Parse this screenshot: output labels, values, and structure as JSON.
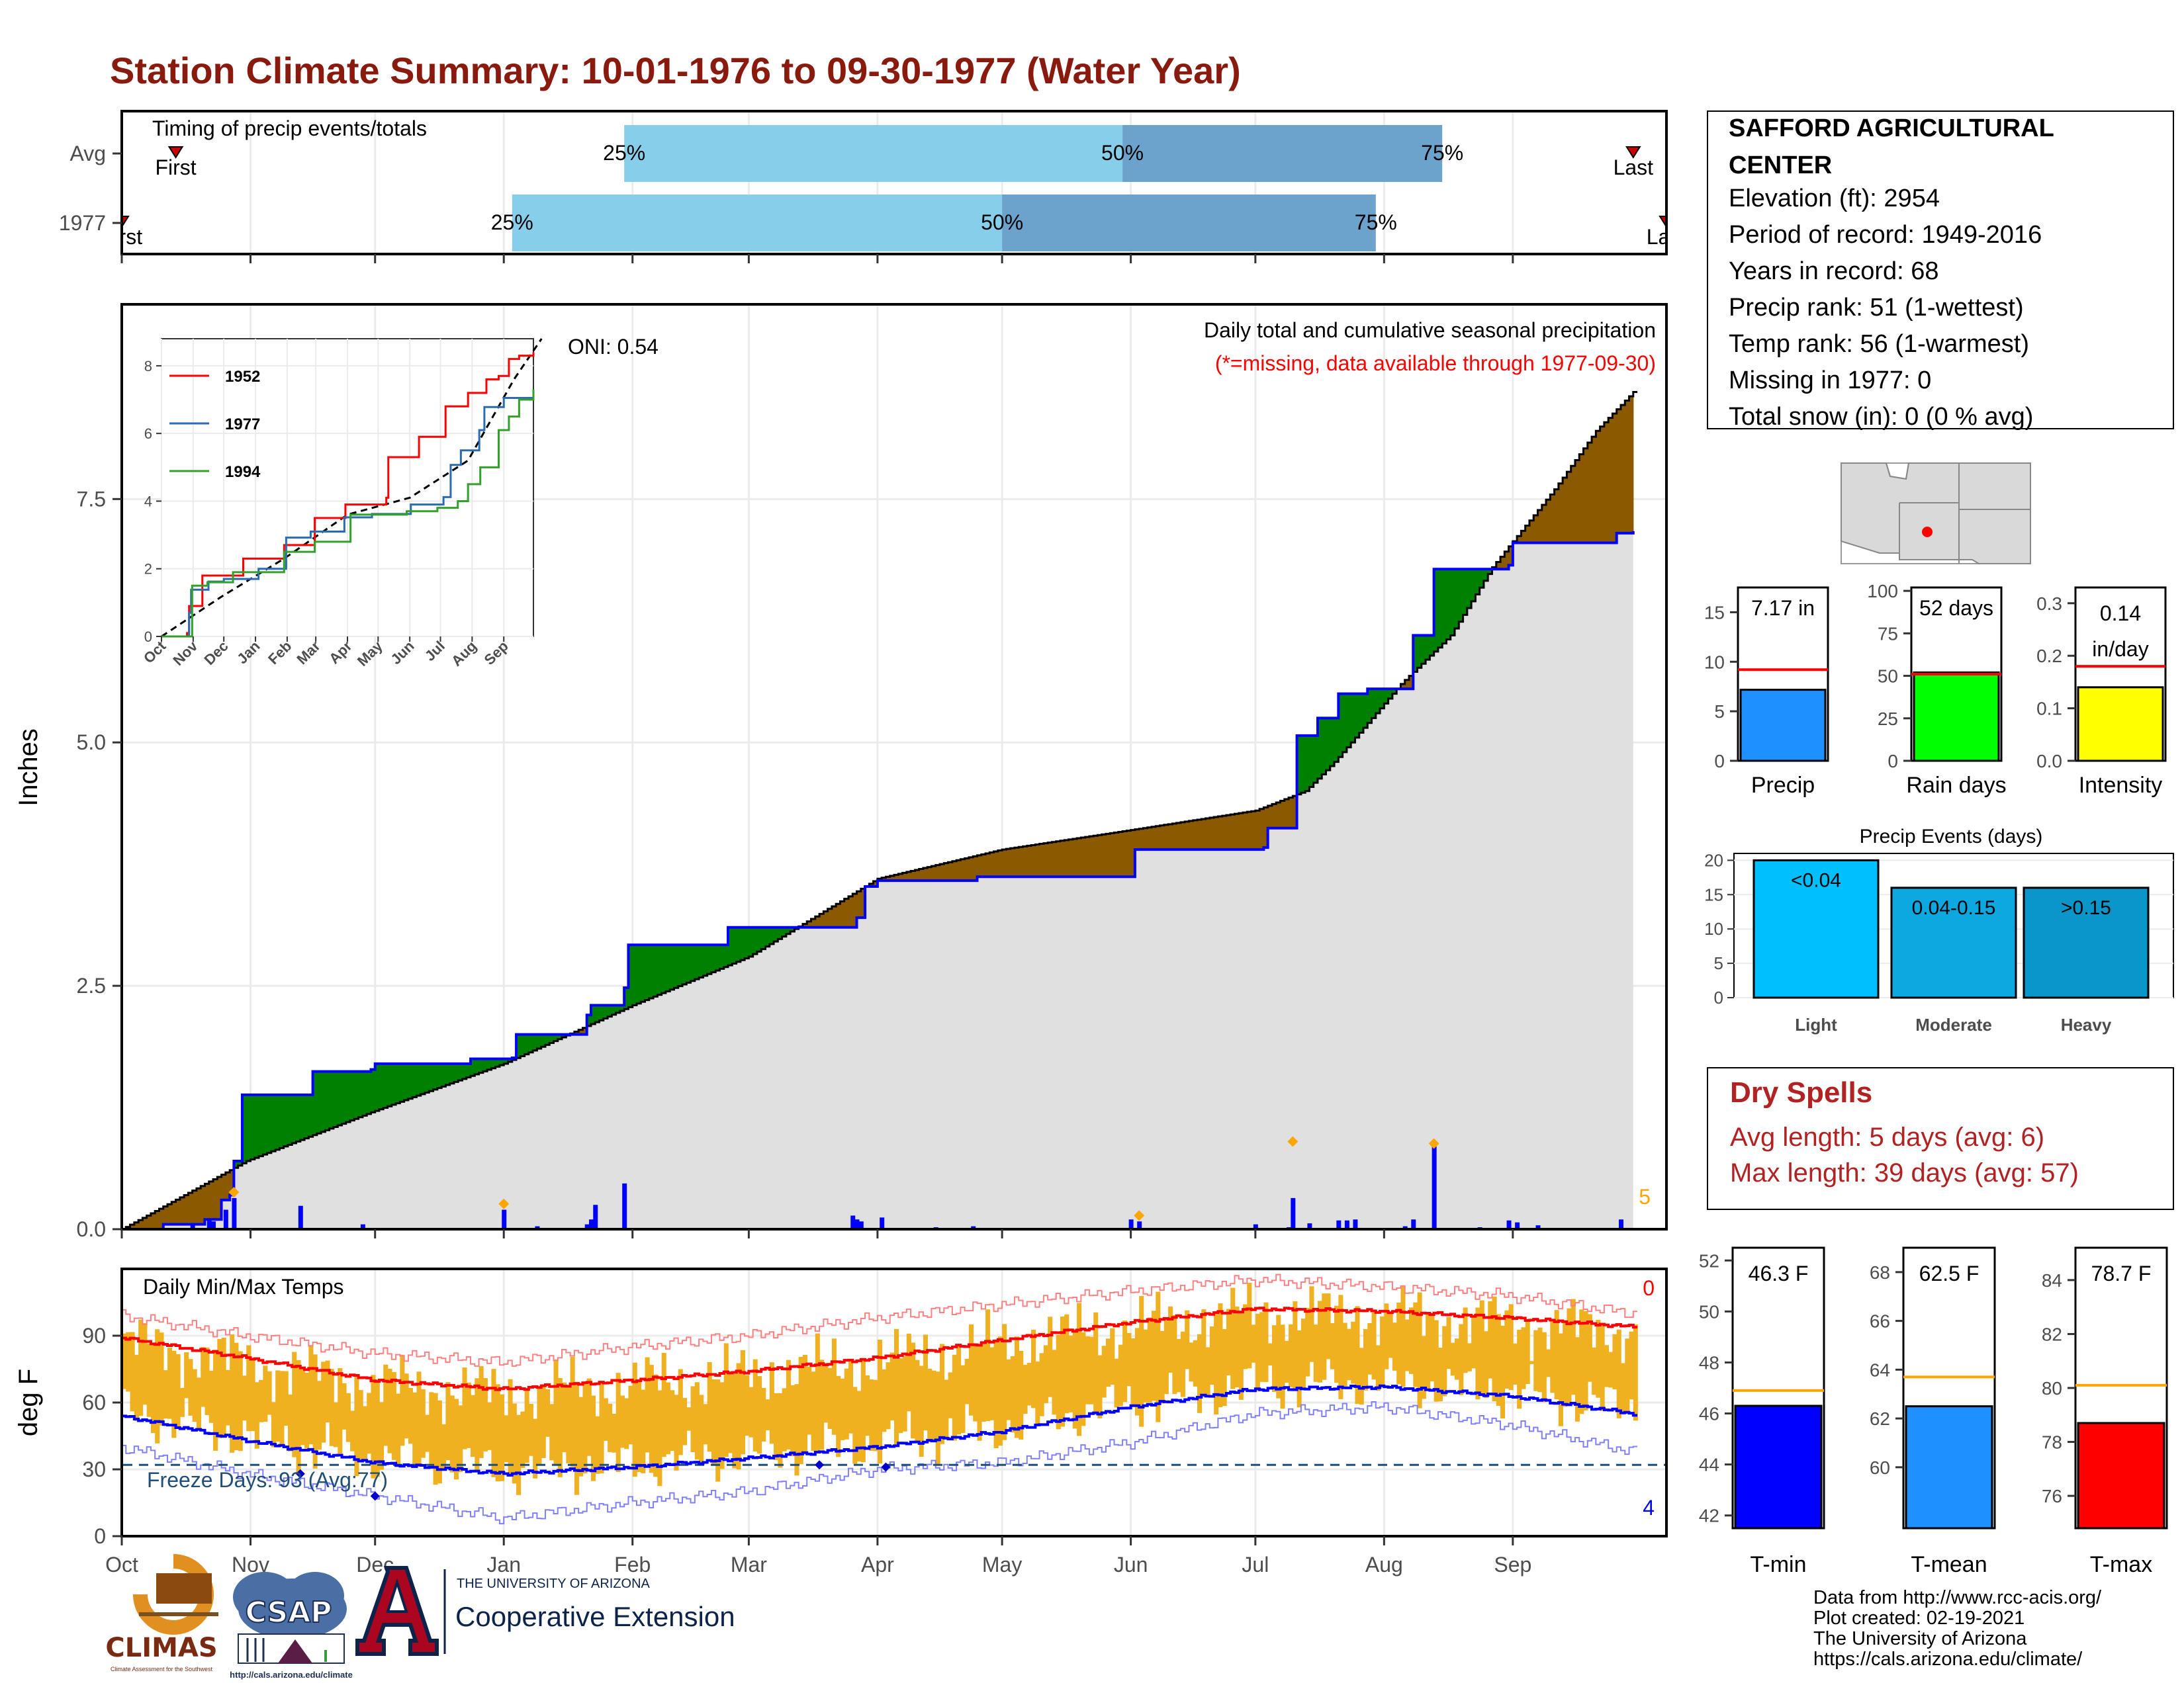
{
  "title": "Station Climate Summary: 10-01-1976 to 09-30-1977 (Water Year)",
  "colors": {
    "title": "#8B1A0E",
    "light_blue": "#87CEEB",
    "mid_blue": "#6BA3CC",
    "brown": "#8B5A00",
    "green": "#008000",
    "gray": "#E0E0E0",
    "blue": "#0000FF",
    "red": "#FF0000",
    "orange": "#FFA500",
    "temp_bar": "#EFB120",
    "dry_red": "#B22222"
  },
  "timing": {
    "label": "Timing of precip events/totals",
    "rows": [
      {
        "name": "Avg",
        "first_day": 13,
        "q25": 121,
        "q50": 241,
        "q75": 318,
        "last_day": 364,
        "first_label": "First",
        "last_label": "Last"
      },
      {
        "name": "1977",
        "first_day": 0,
        "q25": 94,
        "q50": 212,
        "q75": 302,
        "last_day": 372,
        "first_label": "First",
        "last_label": "Last"
      }
    ],
    "pct_labels": [
      "25%",
      "50%",
      "75%"
    ]
  },
  "main": {
    "ylabel": "Inches",
    "yticks": [
      "0.0",
      "2.5",
      "5.0",
      "7.5"
    ],
    "oni": "ONI: 0.54",
    "note1": "Daily total and cumulative seasonal precipitation",
    "note2": "(*=missing, data available through 1977-09-30)",
    "count_label": "5",
    "chart_data": {
      "type": "area",
      "x_unit": "day of water year (Oct 1 = 0)",
      "ylim": [
        0,
        9.5
      ],
      "avg_cumulative": [
        [
          0,
          0
        ],
        [
          30,
          0.7
        ],
        [
          60,
          1.2
        ],
        [
          92,
          1.7
        ],
        [
          123,
          2.3
        ],
        [
          151,
          2.8
        ],
        [
          182,
          3.6
        ],
        [
          212,
          3.9
        ],
        [
          243,
          4.1
        ],
        [
          273,
          4.3
        ],
        [
          285,
          4.5
        ],
        [
          292,
          4.8
        ],
        [
          300,
          5.2
        ],
        [
          308,
          5.6
        ],
        [
          320,
          6.1
        ],
        [
          330,
          6.8
        ],
        [
          345,
          7.6
        ],
        [
          355,
          8.2
        ],
        [
          364,
          8.6
        ]
      ],
      "year_cumulative": [
        [
          0,
          0
        ],
        [
          10,
          0.05
        ],
        [
          20,
          0.1
        ],
        [
          24,
          0.3
        ],
        [
          26,
          0.35
        ],
        [
          27,
          0.7
        ],
        [
          29,
          1.38
        ],
        [
          45,
          1.38
        ],
        [
          46,
          1.62
        ],
        [
          60,
          1.64
        ],
        [
          61,
          1.7
        ],
        [
          83,
          1.7
        ],
        [
          84,
          1.75
        ],
        [
          94,
          1.76
        ],
        [
          95,
          2.0
        ],
        [
          112,
          2.2
        ],
        [
          113,
          2.3
        ],
        [
          121,
          2.48
        ],
        [
          122,
          2.92
        ],
        [
          145,
          2.92
        ],
        [
          146,
          3.1
        ],
        [
          176,
          3.1
        ],
        [
          177,
          3.2
        ],
        [
          179,
          3.52
        ],
        [
          182,
          3.58
        ],
        [
          205,
          3.58
        ],
        [
          206,
          3.62
        ],
        [
          243,
          3.62
        ],
        [
          244,
          3.9
        ],
        [
          275,
          3.92
        ],
        [
          276,
          4.12
        ],
        [
          282,
          4.12
        ],
        [
          283,
          5.07
        ],
        [
          287,
          5.07
        ],
        [
          288,
          5.25
        ],
        [
          292,
          5.25
        ],
        [
          293,
          5.5
        ],
        [
          300,
          5.55
        ],
        [
          310,
          5.55
        ],
        [
          311,
          6.1
        ],
        [
          315,
          6.1
        ],
        [
          316,
          6.78
        ],
        [
          334,
          6.82
        ],
        [
          335,
          7.05
        ],
        [
          360,
          7.15
        ],
        [
          364,
          7.17
        ]
      ],
      "daily_precip": [
        [
          17,
          0.04
        ],
        [
          21,
          0.1
        ],
        [
          22,
          0.08
        ],
        [
          25,
          0.2
        ],
        [
          27,
          0.32
        ],
        [
          43,
          0.24
        ],
        [
          58,
          0.05
        ],
        [
          79,
          0.01
        ],
        [
          92,
          0.2
        ],
        [
          100,
          0.03
        ],
        [
          112,
          0.05
        ],
        [
          113,
          0.1
        ],
        [
          114,
          0.25
        ],
        [
          121,
          0.47
        ],
        [
          176,
          0.14
        ],
        [
          177,
          0.1
        ],
        [
          178,
          0.08
        ],
        [
          183,
          0.12
        ],
        [
          196,
          0.02
        ],
        [
          205,
          0.03
        ],
        [
          243,
          0.1
        ],
        [
          245,
          0.08
        ],
        [
          273,
          0.05
        ],
        [
          281,
          0.02
        ],
        [
          282,
          0.32
        ],
        [
          286,
          0.06
        ],
        [
          293,
          0.09
        ],
        [
          295,
          0.09
        ],
        [
          297,
          0.1
        ],
        [
          309,
          0.03
        ],
        [
          311,
          0.1
        ],
        [
          316,
          0.85
        ],
        [
          327,
          0.02
        ],
        [
          334,
          0.09
        ],
        [
          336,
          0.07
        ],
        [
          341,
          0.04
        ],
        [
          361,
          0.1
        ]
      ],
      "missing_markers": [
        [
          27,
          0.38
        ],
        [
          92,
          0.26
        ],
        [
          245,
          0.14
        ],
        [
          282,
          0.9
        ],
        [
          316,
          0.88
        ]
      ],
      "inset": {
        "xticks": [
          "Oct",
          "Nov",
          "Dec",
          "Jan",
          "Feb",
          "Mar",
          "Apr",
          "May",
          "Jun",
          "Jul",
          "Aug",
          "Sep"
        ],
        "yticks": [
          "0",
          "2",
          "4",
          "6",
          "8"
        ],
        "ylim": [
          0,
          8.8
        ],
        "series": [
          {
            "name": "1952",
            "color": "#FF0000",
            "points": [
              [
                0,
                0
              ],
              [
                25,
                0.1
              ],
              [
                27,
                0.9
              ],
              [
                40,
                1.8
              ],
              [
                80,
                2.3
              ],
              [
                120,
                2.7
              ],
              [
                150,
                3.5
              ],
              [
                180,
                3.9
              ],
              [
                220,
                4.1
              ],
              [
                222,
                5.3
              ],
              [
                250,
                5.3
              ],
              [
                252,
                5.9
              ],
              [
                275,
                5.9
              ],
              [
                278,
                6.8
              ],
              [
                300,
                7.2
              ],
              [
                318,
                7.6
              ],
              [
                330,
                7.7
              ],
              [
                340,
                8.2
              ],
              [
                350,
                8.3
              ],
              [
                364,
                8.4
              ]
            ]
          },
          {
            "name": "1977",
            "color": "#2B6CB0",
            "points": [
              [
                0,
                0
              ],
              [
                27,
                0.7
              ],
              [
                29,
                1.38
              ],
              [
                45,
                1.38
              ],
              [
                46,
                1.62
              ],
              [
                61,
                1.7
              ],
              [
                95,
                2.0
              ],
              [
                122,
                2.92
              ],
              [
                146,
                3.1
              ],
              [
                179,
                3.52
              ],
              [
                206,
                3.62
              ],
              [
                244,
                3.9
              ],
              [
                276,
                4.12
              ],
              [
                283,
                5.07
              ],
              [
                293,
                5.5
              ],
              [
                311,
                6.1
              ],
              [
                316,
                6.78
              ],
              [
                335,
                7.05
              ],
              [
                364,
                7.17
              ]
            ]
          },
          {
            "name": "1994",
            "color": "#33A02C",
            "points": [
              [
                0,
                0
              ],
              [
                30,
                1.5
              ],
              [
                45,
                1.6
              ],
              [
                70,
                1.9
              ],
              [
                95,
                1.9
              ],
              [
                120,
                2.5
              ],
              [
                150,
                2.8
              ],
              [
                185,
                3.6
              ],
              [
                240,
                3.7
              ],
              [
                270,
                3.8
              ],
              [
                290,
                4.0
              ],
              [
                300,
                4.5
              ],
              [
                312,
                5.0
              ],
              [
                330,
                6.1
              ],
              [
                340,
                6.5
              ],
              [
                350,
                7.0
              ],
              [
                364,
                7.3
              ]
            ]
          }
        ],
        "avg_points": [
          [
            0,
            0
          ],
          [
            60,
            1.2
          ],
          [
            120,
            2.3
          ],
          [
            182,
            3.6
          ],
          [
            243,
            4.1
          ],
          [
            300,
            5.2
          ],
          [
            345,
            7.6
          ],
          [
            372,
            8.8
          ]
        ]
      }
    }
  },
  "temps": {
    "label": "Daily Min/Max Temps",
    "ylabel": "deg F",
    "yticks": [
      "0",
      "30",
      "60",
      "90"
    ],
    "ylim": [
      0,
      120
    ],
    "freeze_label": "Freeze Days: 93 (Avg:77)",
    "top_count": "0",
    "bottom_count": "4",
    "xticks": [
      "Oct",
      "Nov",
      "Dec",
      "Jan",
      "Feb",
      "Mar",
      "Apr",
      "May",
      "Jun",
      "Jul",
      "Aug",
      "Sep"
    ],
    "chart_data": {
      "type": "bar",
      "avg_max": [
        [
          0,
          89
        ],
        [
          30,
          80
        ],
        [
          61,
          70
        ],
        [
          92,
          66
        ],
        [
          123,
          70
        ],
        [
          151,
          74
        ],
        [
          182,
          80
        ],
        [
          212,
          88
        ],
        [
          243,
          96
        ],
        [
          273,
          102
        ],
        [
          304,
          101
        ],
        [
          334,
          98
        ],
        [
          364,
          94
        ]
      ],
      "avg_min": [
        [
          0,
          54
        ],
        [
          30,
          43
        ],
        [
          61,
          33
        ],
        [
          92,
          28
        ],
        [
          123,
          31
        ],
        [
          151,
          35
        ],
        [
          182,
          40
        ],
        [
          212,
          47
        ],
        [
          243,
          58
        ],
        [
          273,
          66
        ],
        [
          304,
          67
        ],
        [
          334,
          63
        ],
        [
          364,
          55
        ]
      ],
      "record_max": [
        [
          0,
          99
        ],
        [
          30,
          90
        ],
        [
          61,
          82
        ],
        [
          92,
          78
        ],
        [
          123,
          85
        ],
        [
          151,
          90
        ],
        [
          182,
          98
        ],
        [
          212,
          104
        ],
        [
          243,
          110
        ],
        [
          273,
          115
        ],
        [
          304,
          112
        ],
        [
          334,
          108
        ],
        [
          364,
          100
        ]
      ],
      "record_min": [
        [
          0,
          40
        ],
        [
          30,
          28
        ],
        [
          61,
          18
        ],
        [
          92,
          8
        ],
        [
          123,
          15
        ],
        [
          151,
          20
        ],
        [
          182,
          30
        ],
        [
          212,
          33
        ],
        [
          243,
          42
        ],
        [
          273,
          55
        ],
        [
          304,
          58
        ],
        [
          334,
          50
        ],
        [
          364,
          38
        ]
      ],
      "freeze_markers": [
        [
          43,
          28
        ],
        [
          61,
          18
        ],
        [
          168,
          32
        ],
        [
          184,
          31
        ]
      ]
    }
  },
  "station": {
    "name_line1": "SAFFORD AGRICULTURAL",
    "name_line2": "CENTER",
    "lines": [
      "Elevation (ft): 2954",
      "Period of record: 1949-2016",
      "Years in record: 68",
      "Precip rank: 51 (1-wettest)",
      "Temp rank: 56 (1-warmest)",
      "Missing in 1977: 0",
      "Total snow (in): 0 (0 % avg)"
    ]
  },
  "mini_bars": [
    {
      "label": "Precip",
      "value_label": "7.17 in",
      "value": 7.17,
      "avg": 9.2,
      "ymax": 17.5,
      "ticks": [
        0,
        5,
        10,
        15
      ],
      "tick_labels": [
        "0",
        "5",
        "10",
        "15"
      ],
      "color": "#1E90FF"
    },
    {
      "label": "Rain days",
      "value_label": "52 days",
      "value": 52,
      "avg": 51,
      "ymax": 102,
      "ticks": [
        0,
        25,
        50,
        75,
        100
      ],
      "tick_labels": [
        "0",
        "25",
        "50",
        "75",
        "100"
      ],
      "color": "#00FF00"
    },
    {
      "label": "Intensity",
      "value_label": "0.14 in/day",
      "value": 0.14,
      "avg": 0.18,
      "ymax": 0.33,
      "ticks": [
        0,
        0.1,
        0.2,
        0.3
      ],
      "tick_labels": [
        "0.0",
        "0.1",
        "0.2",
        "0.3"
      ],
      "color": "#FFFF00"
    }
  ],
  "events": {
    "title": "Precip Events (days)",
    "ymax": 21,
    "ticks": [
      "0",
      "5",
      "10",
      "15",
      "20"
    ],
    "bars": [
      {
        "label": "Light",
        "range": "<0.04",
        "value": 20,
        "color": "#00BFFF"
      },
      {
        "label": "Moderate",
        "range": "0.04-0.15",
        "value": 16,
        "color": "#0DA8E0"
      },
      {
        "label": "Heavy",
        "range": ">0.15",
        "value": 16,
        "color": "#0A96C8"
      }
    ]
  },
  "dry": {
    "title": "Dry Spells",
    "avg": "Avg length: 5 days (avg: 6)",
    "max": "Max length: 39 days (avg: 57)"
  },
  "temp_bars": [
    {
      "label": "T-min",
      "value_label": "46.3 F",
      "value": 46.3,
      "avg": 46.9,
      "ymin": 41.5,
      "ymax": 52.5,
      "ticks": [
        42,
        44,
        46,
        48,
        50,
        52
      ],
      "color": "#0000FF"
    },
    {
      "label": "T-mean",
      "value_label": "62.5 F",
      "value": 62.5,
      "avg": 63.7,
      "ymin": 57.5,
      "ymax": 69,
      "ticks": [
        60,
        62,
        64,
        66,
        68
      ],
      "color": "#1E90FF"
    },
    {
      "label": "T-max",
      "value_label": "78.7 F",
      "value": 78.7,
      "avg": 80.1,
      "ymin": 74.8,
      "ymax": 85.2,
      "ticks": [
        76,
        78,
        80,
        82,
        84
      ],
      "color": "#FF0000"
    }
  ],
  "footer": {
    "lines": [
      "Data from http://www.rcc-acis.org/",
      "Plot created: 02-19-2021",
      "The University of Arizona",
      "https://cals.arizona.edu/climate/"
    ],
    "climas": "CLIMAS",
    "climas_sub": "Climate Assessment for the Southwest",
    "csap": "CSAP",
    "csap_url": "http://cals.arizona.edu/climate",
    "ua_top": "THE UNIVERSITY OF ARIZONA",
    "ua_bottom": "Cooperative Extension"
  }
}
